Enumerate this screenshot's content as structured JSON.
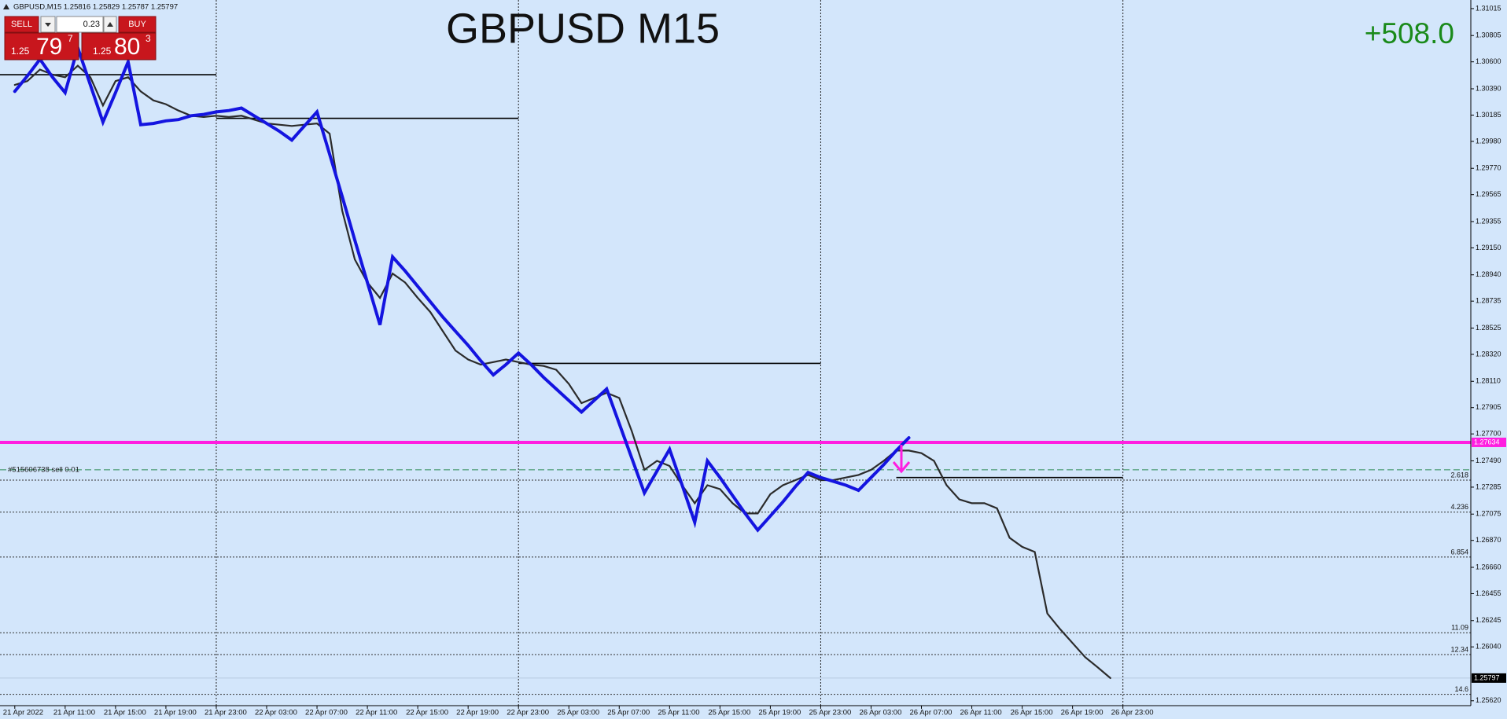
{
  "header": {
    "symbol_info": "GBPUSD,M15  1.25816 1.25829 1.25787 1.25797"
  },
  "trade_panel": {
    "sell": "SELL",
    "buy": "BUY",
    "lot": "0.23",
    "bid": {
      "prefix": "1.25",
      "big": "79",
      "sup": "7"
    },
    "ask": {
      "prefix": "1.25",
      "big": "80",
      "sup": "3"
    }
  },
  "chart_data": {
    "type": "line",
    "title": "GBPUSD M15",
    "profit": "+508.0",
    "categories": [
      "21 Apr 2022",
      null,
      null,
      null,
      "21 Apr 11:00",
      null,
      null,
      null,
      "21 Apr 15:00",
      null,
      null,
      null,
      "21 Apr 19:00",
      null,
      null,
      null,
      "21 Apr 23:00",
      null,
      null,
      null,
      "22 Apr 03:00",
      null,
      null,
      null,
      "22 Apr 07:00",
      null,
      null,
      null,
      "22 Apr 11:00",
      null,
      null,
      null,
      "22 Apr 15:00",
      null,
      null,
      null,
      "22 Apr 19:00",
      null,
      null,
      null,
      "22 Apr 23:00",
      null,
      null,
      null,
      "25 Apr 03:00",
      null,
      null,
      null,
      "25 Apr 07:00",
      null,
      null,
      null,
      "25 Apr 11:00",
      null,
      null,
      null,
      "25 Apr 15:00",
      null,
      null,
      null,
      "25 Apr 19:00",
      null,
      null,
      null,
      "25 Apr 23:00",
      null,
      null,
      null,
      "26 Apr 03:00",
      null,
      null,
      null,
      "26 Apr 07:00",
      null,
      null,
      null,
      "26 Apr 11:00",
      null,
      null,
      null,
      "26 Apr 15:00",
      null,
      null,
      null,
      "26 Apr 19:00",
      null,
      null,
      null,
      "26 Apr 23:00"
    ],
    "series": [
      {
        "name": "price",
        "color": "#2b2b2b",
        "values": [
          1.3042,
          1.3045,
          1.3054,
          1.305,
          1.3048,
          1.3057,
          1.3048,
          1.3026,
          1.3045,
          1.3048,
          1.3037,
          1.303,
          1.3027,
          1.3022,
          1.3018,
          1.3017,
          1.3018,
          1.3017,
          1.3018,
          1.3015,
          1.3012,
          1.3011,
          1.301,
          1.3011,
          1.3012,
          1.3004,
          1.2944,
          1.2906,
          1.2888,
          1.2876,
          1.2895,
          1.2888,
          1.2876,
          1.2865,
          1.285,
          1.2835,
          1.2828,
          1.2824,
          1.2826,
          1.2828,
          1.2826,
          1.2824,
          1.2823,
          1.282,
          1.2809,
          1.2794,
          1.2798,
          1.2802,
          1.2798,
          1.2772,
          1.2742,
          1.2749,
          1.2745,
          1.273,
          1.2716,
          1.273,
          1.2727,
          1.2716,
          1.2708,
          1.2708,
          1.2723,
          1.273,
          1.2734,
          1.2738,
          1.2734,
          1.2734,
          1.2736,
          1.2738,
          1.2742,
          1.2749,
          1.2757,
          1.2757,
          1.2755,
          1.2749,
          1.273,
          1.2719,
          1.2716,
          1.2716,
          1.2712,
          1.2689,
          1.2682,
          1.2678,
          1.263,
          1.2618,
          1.2607,
          1.2596,
          1.2588,
          1.25797,
          null
        ]
      },
      {
        "name": "zigzag",
        "color": "#1414e0",
        "values": [
          1.3037,
          1.3049,
          1.3062,
          1.3048,
          1.3036,
          1.3071,
          1.3042,
          1.3013,
          1.3036,
          1.306,
          1.3011,
          1.3012,
          1.3014,
          1.3015,
          1.3018,
          1.3019,
          1.3021,
          1.3022,
          1.3024,
          1.3018,
          1.3012,
          1.3006,
          1.2999,
          1.301,
          1.3021,
          1.2988,
          1.2955,
          1.2921,
          1.2888,
          1.2855,
          1.2908,
          1.2897,
          1.2885,
          1.2873,
          1.2861,
          1.285,
          1.2839,
          1.2827,
          1.2816,
          1.2824,
          1.2833,
          1.2824,
          1.2814,
          1.2805,
          1.2796,
          1.2787,
          1.2796,
          1.2805,
          1.2778,
          1.2751,
          1.2724,
          1.2741,
          1.2758,
          1.273,
          1.2701,
          1.2749,
          1.2736,
          1.2722,
          1.2708,
          1.2695,
          1.2706,
          1.2717,
          1.2729,
          1.274,
          1.2736,
          1.2733,
          1.273,
          1.2726,
          1.2736,
          1.2746,
          1.2757,
          1.2767,
          null,
          null,
          null,
          null,
          null,
          null,
          null,
          null,
          null,
          null,
          null,
          null,
          null,
          null,
          null,
          null,
          null
        ]
      }
    ],
    "levels": [
      {
        "value": 1.305,
        "to": "21 Apr 23:00"
      },
      {
        "value": 1.3016,
        "from": "21 Apr 23:00",
        "to": "22 Apr 23:00"
      },
      {
        "value": 1.2825,
        "from": "22 Apr 23:00",
        "to": "25 Apr 23:00"
      },
      {
        "value": 1.2736,
        "from": "26 Apr 05:00",
        "to": "26 Apr 23:00"
      }
    ],
    "fib": [
      {
        "value": 1.2734,
        "label": "2.618"
      },
      {
        "value": 1.2709,
        "label": "4.236"
      },
      {
        "value": 1.2674,
        "label": "6.854"
      },
      {
        "value": 1.2615,
        "label": "11.09"
      },
      {
        "value": 1.2598,
        "label": "12.34"
      },
      {
        "value": 1.2567,
        "label": "14.6"
      }
    ],
    "order": {
      "value": 1.2742,
      "text": "#515606738 sell 0.01"
    },
    "entry_line": 1.27634,
    "last_price": 1.25797,
    "ylim": [
      1.25582,
      1.31082
    ],
    "yticks": [
      1.31015,
      1.30805,
      {
        "value": 1.306,
        "label": "1.30600"
      },
      {
        "value": 1.3039,
        "label": "1.30390"
      },
      1.30185,
      {
        "value": 1.2998,
        "label": "1.29980"
      },
      {
        "value": 1.2977,
        "label": "1.29770"
      },
      1.29565,
      1.29355,
      {
        "value": 1.2915,
        "label": "1.29150"
      },
      {
        "value": 1.2894,
        "label": "1.28940"
      },
      1.28735,
      1.28525,
      {
        "value": 1.2832,
        "label": "1.28320"
      },
      {
        "value": 1.2811,
        "label": "1.28110"
      },
      1.27905,
      {
        "value": 1.277,
        "label": "1.27700"
      },
      {
        "value": 1.2749,
        "label": "1.27490"
      },
      1.27285,
      1.27075,
      {
        "value": 1.2687,
        "label": "1.26870"
      },
      {
        "value": 1.2666,
        "label": "1.26660"
      },
      1.26455,
      1.26245,
      {
        "value": 1.2604,
        "label": "1.26040"
      },
      {
        "value": 1.2562,
        "label": "1.25620"
      }
    ],
    "period_separators": true
  }
}
